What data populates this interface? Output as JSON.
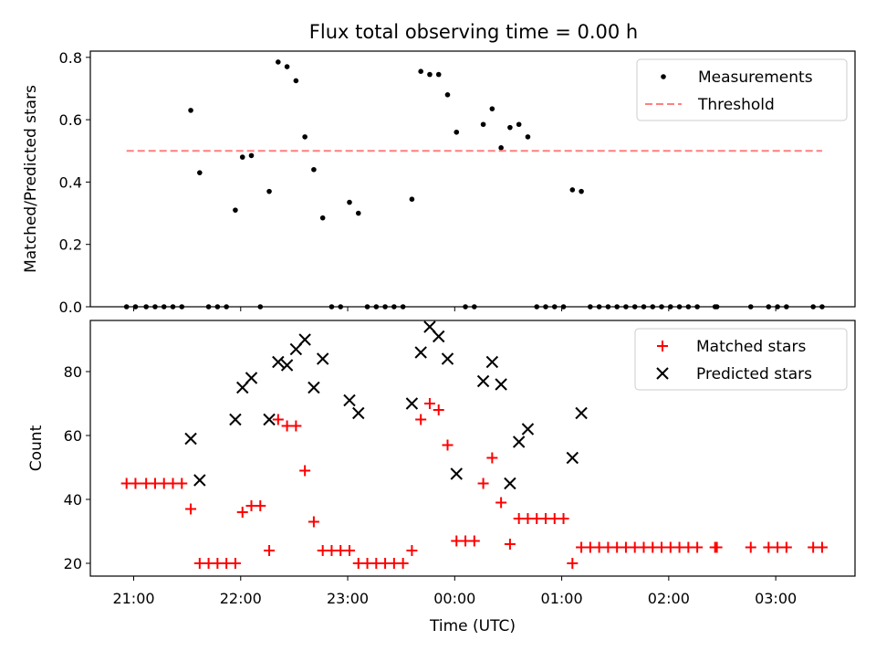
{
  "title": "Flux total observing time = 0.00 h",
  "chart_data": [
    {
      "type": "scatter",
      "ylabel": "Matched/Predicted stars",
      "xlabel": "",
      "ylim": [
        0,
        0.82
      ],
      "yticks": [
        0.0,
        0.2,
        0.4,
        0.6,
        0.8
      ],
      "ytick_labels": [
        "0.0",
        "0.2",
        "0.4",
        "0.6",
        "0.8"
      ],
      "legend_position": "top-right",
      "grid": false,
      "series": [
        {
          "name": "Measurements",
          "marker": "dot",
          "color": "#000000",
          "points": [
            [
              "20:56",
              0.0
            ],
            [
              "21:01",
              0.0
            ],
            [
              "21:07",
              0.0
            ],
            [
              "21:12",
              0.0
            ],
            [
              "21:17",
              0.0
            ],
            [
              "21:22",
              0.0
            ],
            [
              "21:27",
              0.0
            ],
            [
              "21:32",
              0.63
            ],
            [
              "21:37",
              0.43
            ],
            [
              "21:42",
              0.0
            ],
            [
              "21:47",
              0.0
            ],
            [
              "21:52",
              0.0
            ],
            [
              "21:57",
              0.31
            ],
            [
              "22:01",
              0.48
            ],
            [
              "22:06",
              0.485
            ],
            [
              "22:11",
              0.0
            ],
            [
              "22:16",
              0.37
            ],
            [
              "22:21",
              0.785
            ],
            [
              "22:26",
              0.77
            ],
            [
              "22:31",
              0.725
            ],
            [
              "22:36",
              0.545
            ],
            [
              "22:41",
              0.44
            ],
            [
              "22:46",
              0.285
            ],
            [
              "22:51",
              0.0
            ],
            [
              "22:56",
              0.0
            ],
            [
              "23:01",
              0.335
            ],
            [
              "23:06",
              0.3
            ],
            [
              "23:11",
              0.0
            ],
            [
              "23:16",
              0.0
            ],
            [
              "23:21",
              0.0
            ],
            [
              "23:26",
              0.0
            ],
            [
              "23:31",
              0.0
            ],
            [
              "23:36",
              0.345
            ],
            [
              "23:41",
              0.755
            ],
            [
              "23:46",
              0.745
            ],
            [
              "23:51",
              0.745
            ],
            [
              "23:56",
              0.68
            ],
            [
              "00:01",
              0.56
            ],
            [
              "00:06",
              0.0
            ],
            [
              "00:11",
              0.0
            ],
            [
              "00:16",
              0.585
            ],
            [
              "00:21",
              0.635
            ],
            [
              "00:26",
              0.51
            ],
            [
              "00:31",
              0.575
            ],
            [
              "00:36",
              0.585
            ],
            [
              "00:41",
              0.545
            ],
            [
              "00:46",
              0.0
            ],
            [
              "00:51",
              0.0
            ],
            [
              "00:56",
              0.0
            ],
            [
              "01:01",
              0.0
            ],
            [
              "01:06",
              0.375
            ],
            [
              "01:11",
              0.37
            ],
            [
              "01:16",
              0.0
            ],
            [
              "01:21",
              0.0
            ],
            [
              "01:26",
              0.0
            ],
            [
              "01:31",
              0.0
            ],
            [
              "01:36",
              0.0
            ],
            [
              "01:41",
              0.0
            ],
            [
              "01:46",
              0.0
            ],
            [
              "01:51",
              0.0
            ],
            [
              "01:56",
              0.0
            ],
            [
              "02:01",
              0.0
            ],
            [
              "02:06",
              0.0
            ],
            [
              "02:11",
              0.0
            ],
            [
              "02:16",
              0.0
            ],
            [
              "02:26",
              0.0
            ],
            [
              "02:27",
              0.0
            ],
            [
              "02:46",
              0.0
            ],
            [
              "02:56",
              0.0
            ],
            [
              "03:01",
              0.0
            ],
            [
              "03:06",
              0.0
            ],
            [
              "03:21",
              0.0
            ],
            [
              "03:26",
              0.0
            ]
          ]
        },
        {
          "name": "Threshold",
          "type": "line",
          "style": "dashed",
          "color": "#ff7f7f",
          "x": [
            "20:56",
            "03:26"
          ],
          "y": [
            0.5,
            0.5
          ]
        }
      ]
    },
    {
      "type": "scatter",
      "ylabel": "Count",
      "xlabel": "Time (UTC)",
      "ylim": [
        16,
        96
      ],
      "yticks": [
        20,
        40,
        60,
        80
      ],
      "ytick_labels": [
        "20",
        "40",
        "60",
        "80"
      ],
      "xticks": [
        "21:00",
        "22:00",
        "23:00",
        "00:00",
        "01:00",
        "02:00",
        "03:00"
      ],
      "legend_position": "top-right",
      "grid": false,
      "series": [
        {
          "name": "Matched stars",
          "marker": "plus",
          "color": "#ff0000",
          "points": [
            [
              "20:56",
              45
            ],
            [
              "21:01",
              45
            ],
            [
              "21:07",
              45
            ],
            [
              "21:12",
              45
            ],
            [
              "21:17",
              45
            ],
            [
              "21:22",
              45
            ],
            [
              "21:27",
              45
            ],
            [
              "21:32",
              37
            ],
            [
              "21:37",
              20
            ],
            [
              "21:42",
              20
            ],
            [
              "21:47",
              20
            ],
            [
              "21:52",
              20
            ],
            [
              "21:57",
              20
            ],
            [
              "22:01",
              36
            ],
            [
              "22:06",
              38
            ],
            [
              "22:11",
              38
            ],
            [
              "22:16",
              24
            ],
            [
              "22:21",
              65
            ],
            [
              "22:26",
              63
            ],
            [
              "22:31",
              63
            ],
            [
              "22:36",
              49
            ],
            [
              "22:41",
              33
            ],
            [
              "22:46",
              24
            ],
            [
              "22:51",
              24
            ],
            [
              "22:56",
              24
            ],
            [
              "23:01",
              24
            ],
            [
              "23:06",
              20
            ],
            [
              "23:11",
              20
            ],
            [
              "23:16",
              20
            ],
            [
              "23:21",
              20
            ],
            [
              "23:26",
              20
            ],
            [
              "23:31",
              20
            ],
            [
              "23:36",
              24
            ],
            [
              "23:41",
              65
            ],
            [
              "23:46",
              70
            ],
            [
              "23:51",
              68
            ],
            [
              "23:56",
              57
            ],
            [
              "00:01",
              27
            ],
            [
              "00:06",
              27
            ],
            [
              "00:11",
              27
            ],
            [
              "00:16",
              45
            ],
            [
              "00:21",
              53
            ],
            [
              "00:26",
              39
            ],
            [
              "00:31",
              26
            ],
            [
              "00:36",
              34
            ],
            [
              "00:41",
              34
            ],
            [
              "00:46",
              34
            ],
            [
              "00:51",
              34
            ],
            [
              "00:56",
              34
            ],
            [
              "01:01",
              34
            ],
            [
              "01:06",
              20
            ],
            [
              "01:11",
              25
            ],
            [
              "01:16",
              25
            ],
            [
              "01:21",
              25
            ],
            [
              "01:26",
              25
            ],
            [
              "01:31",
              25
            ],
            [
              "01:36",
              25
            ],
            [
              "01:41",
              25
            ],
            [
              "01:46",
              25
            ],
            [
              "01:51",
              25
            ],
            [
              "01:56",
              25
            ],
            [
              "02:01",
              25
            ],
            [
              "02:06",
              25
            ],
            [
              "02:11",
              25
            ],
            [
              "02:16",
              25
            ],
            [
              "02:26",
              25
            ],
            [
              "02:27",
              25
            ],
            [
              "02:46",
              25
            ],
            [
              "02:56",
              25
            ],
            [
              "03:01",
              25
            ],
            [
              "03:06",
              25
            ],
            [
              "03:21",
              25
            ],
            [
              "03:26",
              25
            ]
          ]
        },
        {
          "name": "Predicted stars",
          "marker": "x",
          "color": "#000000",
          "points": [
            [
              "21:32",
              59
            ],
            [
              "21:37",
              46
            ],
            [
              "21:57",
              65
            ],
            [
              "22:01",
              75
            ],
            [
              "22:06",
              78
            ],
            [
              "22:16",
              65
            ],
            [
              "22:21",
              83
            ],
            [
              "22:26",
              82
            ],
            [
              "22:31",
              87
            ],
            [
              "22:36",
              90
            ],
            [
              "22:41",
              75
            ],
            [
              "22:46",
              84
            ],
            [
              "23:01",
              71
            ],
            [
              "23:06",
              67
            ],
            [
              "23:36",
              70
            ],
            [
              "23:41",
              86
            ],
            [
              "23:46",
              94
            ],
            [
              "23:51",
              91
            ],
            [
              "23:56",
              84
            ],
            [
              "00:01",
              48
            ],
            [
              "00:16",
              77
            ],
            [
              "00:21",
              83
            ],
            [
              "00:26",
              76
            ],
            [
              "00:31",
              45
            ],
            [
              "00:36",
              58
            ],
            [
              "00:41",
              62
            ],
            [
              "01:06",
              53
            ],
            [
              "01:11",
              67
            ]
          ]
        }
      ]
    }
  ]
}
